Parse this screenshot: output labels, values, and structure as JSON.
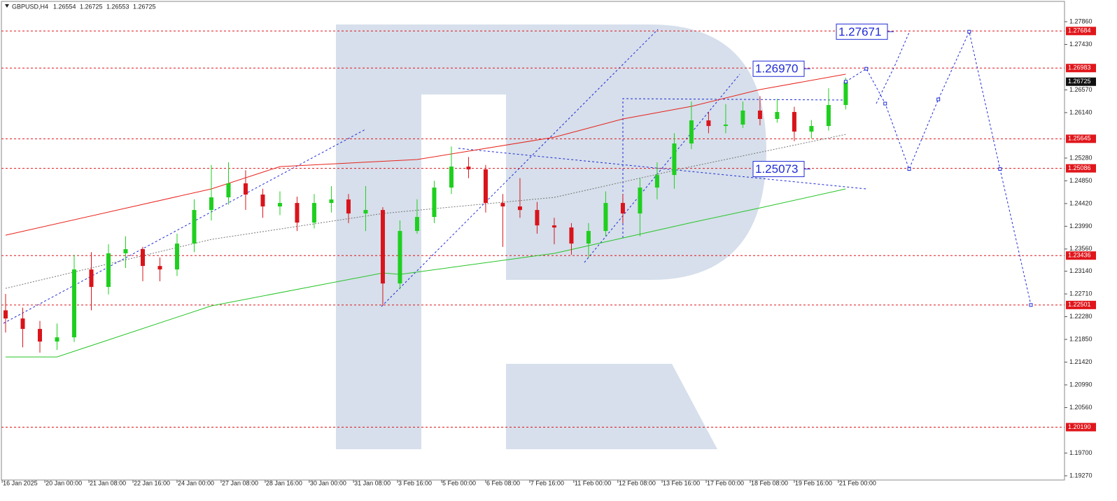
{
  "chart_data": {
    "type": "candlestick",
    "title": "GBPUSD,H4",
    "header_prices": [
      1.26554,
      1.26725,
      1.26553,
      1.26725
    ],
    "up_color": "#1fcf1f",
    "down_color": "#d9141b",
    "open": [
      1.224,
      1.22246,
      1.22048,
      1.21809,
      1.21889,
      1.23173,
      1.22842,
      1.23478,
      1.23557,
      1.23239,
      1.23173,
      1.23663,
      1.24298,
      1.24537,
      1.24802,
      1.2459,
      1.24365,
      1.24431,
      1.2406,
      1.24431,
      1.24497,
      1.24232,
      1.24298,
      1.22908,
      1.23901,
      1.24166,
      1.24722,
      1.25119,
      1.25066,
      1.24431,
      1.24365,
      1.24298,
      1.24007,
      1.23967,
      1.23663,
      1.23901,
      1.24431,
      1.24232,
      1.24722,
      1.2496,
      1.25556,
      1.25993,
      1.25887,
      1.25914,
      1.26179,
      1.2602,
      1.26152,
      1.25781,
      1.25887,
      1.26284
    ],
    "high": [
      1.2271,
      1.2245,
      1.222,
      1.2215,
      1.2345,
      1.235,
      1.2365,
      1.238,
      1.236,
      1.234,
      1.2385,
      1.245,
      1.2515,
      1.252,
      1.2505,
      1.247,
      1.2465,
      1.2455,
      1.246,
      1.2475,
      1.246,
      1.2475,
      1.2435,
      1.241,
      1.245,
      1.2485,
      1.255,
      1.253,
      1.2515,
      1.246,
      1.249,
      1.2445,
      1.2415,
      1.2405,
      1.2405,
      1.2465,
      1.246,
      1.249,
      1.252,
      1.2575,
      1.2635,
      1.2615,
      1.263,
      1.2635,
      1.2645,
      1.264,
      1.2625,
      1.26,
      1.266,
      1.268
    ],
    "low": [
      1.2198,
      1.217,
      1.216,
      1.2165,
      1.218,
      1.224,
      1.227,
      1.232,
      1.2295,
      1.2295,
      1.2305,
      1.235,
      1.241,
      1.244,
      1.243,
      1.2415,
      1.242,
      1.239,
      1.2395,
      1.2425,
      1.2405,
      1.239,
      1.225,
      1.228,
      1.2385,
      1.2405,
      1.246,
      1.249,
      1.2425,
      1.236,
      1.2415,
      1.2385,
      1.2365,
      1.2345,
      1.234,
      1.238,
      1.2405,
      1.238,
      1.245,
      1.247,
      1.2545,
      1.2575,
      1.2575,
      1.2585,
      1.259,
      1.2595,
      1.256,
      1.2565,
      1.258,
      1.262
    ],
    "close": [
      1.22246,
      1.22048,
      1.21809,
      1.21889,
      1.23173,
      1.22842,
      1.23478,
      1.23557,
      1.23239,
      1.23173,
      1.23663,
      1.24298,
      1.24537,
      1.24802,
      1.2459,
      1.24365,
      1.24431,
      1.2406,
      1.24431,
      1.24497,
      1.24232,
      1.24298,
      1.22908,
      1.23901,
      1.24166,
      1.24722,
      1.25119,
      1.25066,
      1.24431,
      1.24365,
      1.24298,
      1.24007,
      1.23967,
      1.23663,
      1.23901,
      1.24431,
      1.24232,
      1.24722,
      1.2496,
      1.25556,
      1.25993,
      1.25887,
      1.25914,
      1.26179,
      1.2602,
      1.26152,
      1.25781,
      1.25887,
      1.26284,
      1.26725
    ],
    "xlim": [
      -0.245,
      61.76
    ],
    "ylim": [
      1.1919,
      1.28244
    ],
    "yticks": [
      {
        "value": 1.2786,
        "label": "1.27860"
      },
      {
        "value": 1.2743,
        "label": "1.27430"
      },
      {
        "value": 1.2657,
        "label": "1.26570"
      },
      {
        "value": 1.2614,
        "label": "1.26140"
      },
      {
        "value": 1.2528,
        "label": "1.25280"
      },
      {
        "value": 1.2485,
        "label": "1.24850"
      },
      {
        "value": 1.2442,
        "label": "1.24420"
      },
      {
        "value": 1.2399,
        "label": "1.23990"
      },
      {
        "value": 1.2356,
        "label": "1.23560"
      },
      {
        "value": 1.2314,
        "label": "1.23140"
      },
      {
        "value": 1.2271,
        "label": "1.22710"
      },
      {
        "value": 1.2228,
        "label": "1.22280"
      },
      {
        "value": 1.2185,
        "label": "1.21850"
      },
      {
        "value": 1.2142,
        "label": "1.21420"
      },
      {
        "value": 1.2099,
        "label": "1.20990"
      },
      {
        "value": 1.2056,
        "label": "1.20560"
      },
      {
        "value": 1.197,
        "label": "1.19700"
      },
      {
        "value": 1.1927,
        "label": "1.19270"
      }
    ],
    "xticks": [
      {
        "value": -0.2,
        "label": "16 Jan 2025"
      },
      {
        "value": 2.29,
        "label": "20 Jan 00:00"
      },
      {
        "value": 4.86,
        "label": "21 Jan 08:00"
      },
      {
        "value": 7.43,
        "label": "22 Jan 16:00"
      },
      {
        "value": 10.0,
        "label": "24 Jan 00:00"
      },
      {
        "value": 12.57,
        "label": "27 Jan 08:00"
      },
      {
        "value": 15.14,
        "label": "28 Jan 16:00"
      },
      {
        "value": 17.71,
        "label": "30 Jan 00:00"
      },
      {
        "value": 20.29,
        "label": "31 Jan 08:00"
      },
      {
        "value": 22.86,
        "label": "3 Feb 16:00"
      },
      {
        "value": 25.43,
        "label": "5 Feb 00:00"
      },
      {
        "value": 28.0,
        "label": "6 Feb 08:00"
      },
      {
        "value": 30.57,
        "label": "7 Feb 16:00"
      },
      {
        "value": 33.14,
        "label": "11 Feb 00:00"
      },
      {
        "value": 35.71,
        "label": "12 Feb 08:00"
      },
      {
        "value": 38.29,
        "label": "13 Feb 16:00"
      },
      {
        "value": 40.86,
        "label": "17 Feb 00:00"
      },
      {
        "value": 43.43,
        "label": "18 Feb 08:00"
      },
      {
        "value": 46.0,
        "label": "19 Feb 16:00"
      },
      {
        "value": 48.57,
        "label": "21 Feb 00:00"
      }
    ],
    "lines": [
      {
        "color": "#e8231c",
        "dash": false,
        "x": [
          0,
          12,
          16,
          24,
          32,
          36,
          40,
          44,
          49
        ],
        "values": [
          1.23822,
          1.24696,
          1.25119,
          1.25252,
          1.25675,
          1.2602,
          1.26258,
          1.26576,
          1.26867
        ]
      },
      {
        "color": "#27c427",
        "dash": false,
        "x": [
          0,
          3,
          12,
          22,
          23,
          32,
          36,
          40,
          44,
          49
        ],
        "values": [
          1.21518,
          1.21518,
          1.22485,
          1.23107,
          1.2308,
          1.23478,
          1.23769,
          1.2406,
          1.24338,
          1.24696
        ]
      },
      {
        "color": "#777777",
        "dash": true,
        "x": [
          0,
          12,
          22,
          32,
          40,
          49
        ],
        "values": [
          1.22816,
          1.23742,
          1.24232,
          1.24537,
          1.25119,
          1.25728
        ]
      }
    ],
    "forecast": {
      "color": "#1f2bd6",
      "x": [
        49,
        50.2,
        51.3,
        52.7,
        54.4,
        56.2,
        58.0,
        59.8
      ],
      "values": [
        1.26725,
        1.2697,
        1.26311,
        1.25073,
        1.2639,
        1.27671,
        1.25073,
        1.22501
      ]
    },
    "levels": {
      "color": "#e0161b",
      "values": [
        1.27684,
        1.26983,
        1.25645,
        1.25086,
        1.23436,
        1.22501,
        {
          "value": 1.2019,
          "label": "1.20190"
        }
      ]
    },
    "current": 1.26725,
    "targets": [
      1.27671,
      {
        "value": 1.2697,
        "label": "1.26970"
      },
      1.25073
    ]
  }
}
